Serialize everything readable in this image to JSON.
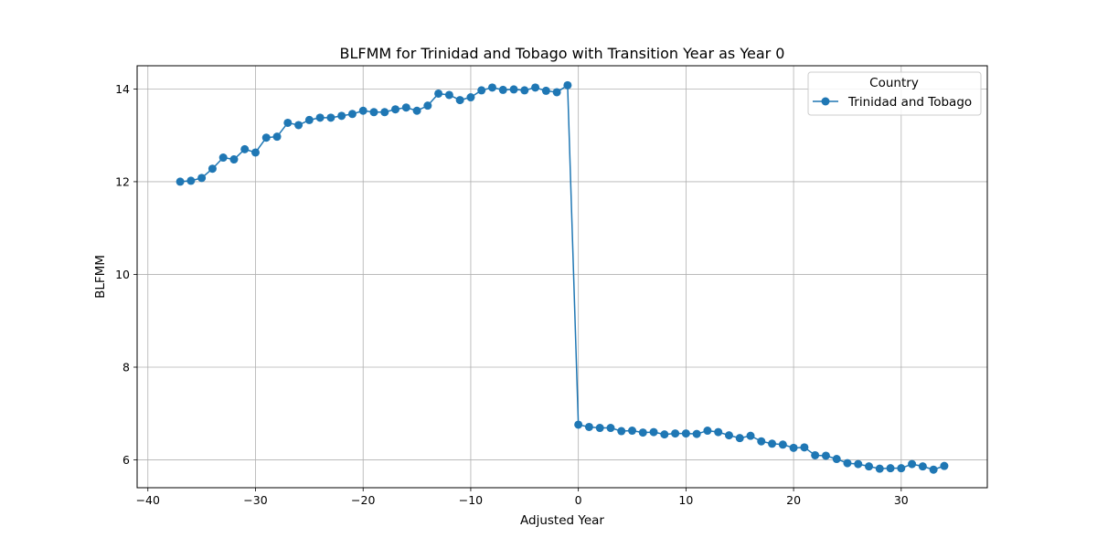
{
  "chart_data": {
    "type": "line",
    "title": "BLFMM for Trinidad and Tobago with Transition Year as Year 0",
    "xlabel": "Adjusted Year",
    "ylabel": "BLFMM",
    "xlim": [
      -41,
      38
    ],
    "ylim": [
      5.4,
      14.5
    ],
    "xticks": [
      -40,
      -30,
      -20,
      -10,
      0,
      10,
      20,
      30
    ],
    "xtick_labels": [
      "−40",
      "−30",
      "−20",
      "−10",
      "0",
      "10",
      "20",
      "30"
    ],
    "yticks": [
      6,
      8,
      10,
      12,
      14
    ],
    "ytick_labels": [
      "6",
      "8",
      "10",
      "12",
      "14"
    ],
    "grid": true,
    "legend": {
      "title": "Country",
      "placement": "top-right"
    },
    "series": [
      {
        "name": "Trinidad and Tobago",
        "color": "#1f77b4",
        "marker": "circle",
        "x": [
          -37,
          -36,
          -35,
          -34,
          -33,
          -32,
          -31,
          -30,
          -29,
          -28,
          -27,
          -26,
          -25,
          -24,
          -23,
          -22,
          -21,
          -20,
          -19,
          -18,
          -17,
          -16,
          -15,
          -14,
          -13,
          -12,
          -11,
          -10,
          -9,
          -8,
          -7,
          -6,
          -5,
          -4,
          -3,
          -2,
          -1,
          0,
          1,
          2,
          3,
          4,
          5,
          6,
          7,
          8,
          9,
          10,
          11,
          12,
          13,
          14,
          15,
          16,
          17,
          18,
          19,
          20,
          21,
          22,
          23,
          24,
          25,
          26,
          27,
          28,
          29,
          30,
          31,
          32,
          33,
          34
        ],
        "y": [
          12.0,
          12.02,
          12.08,
          12.28,
          12.52,
          12.48,
          12.7,
          12.63,
          12.95,
          12.97,
          13.27,
          13.22,
          13.33,
          13.38,
          13.38,
          13.42,
          13.46,
          13.53,
          13.5,
          13.5,
          13.56,
          13.6,
          13.53,
          13.64,
          13.9,
          13.87,
          13.76,
          13.82,
          13.97,
          14.03,
          13.98,
          13.99,
          13.97,
          14.03,
          13.96,
          13.93,
          14.08,
          6.76,
          6.71,
          6.69,
          6.69,
          6.62,
          6.63,
          6.59,
          6.6,
          6.55,
          6.57,
          6.57,
          6.56,
          6.63,
          6.6,
          6.53,
          6.47,
          6.52,
          6.4,
          6.35,
          6.33,
          6.26,
          6.27,
          6.1,
          6.09,
          6.02,
          5.93,
          5.91,
          5.86,
          5.81,
          5.82,
          5.82,
          5.91,
          5.86,
          5.79,
          5.87
        ]
      }
    ]
  }
}
